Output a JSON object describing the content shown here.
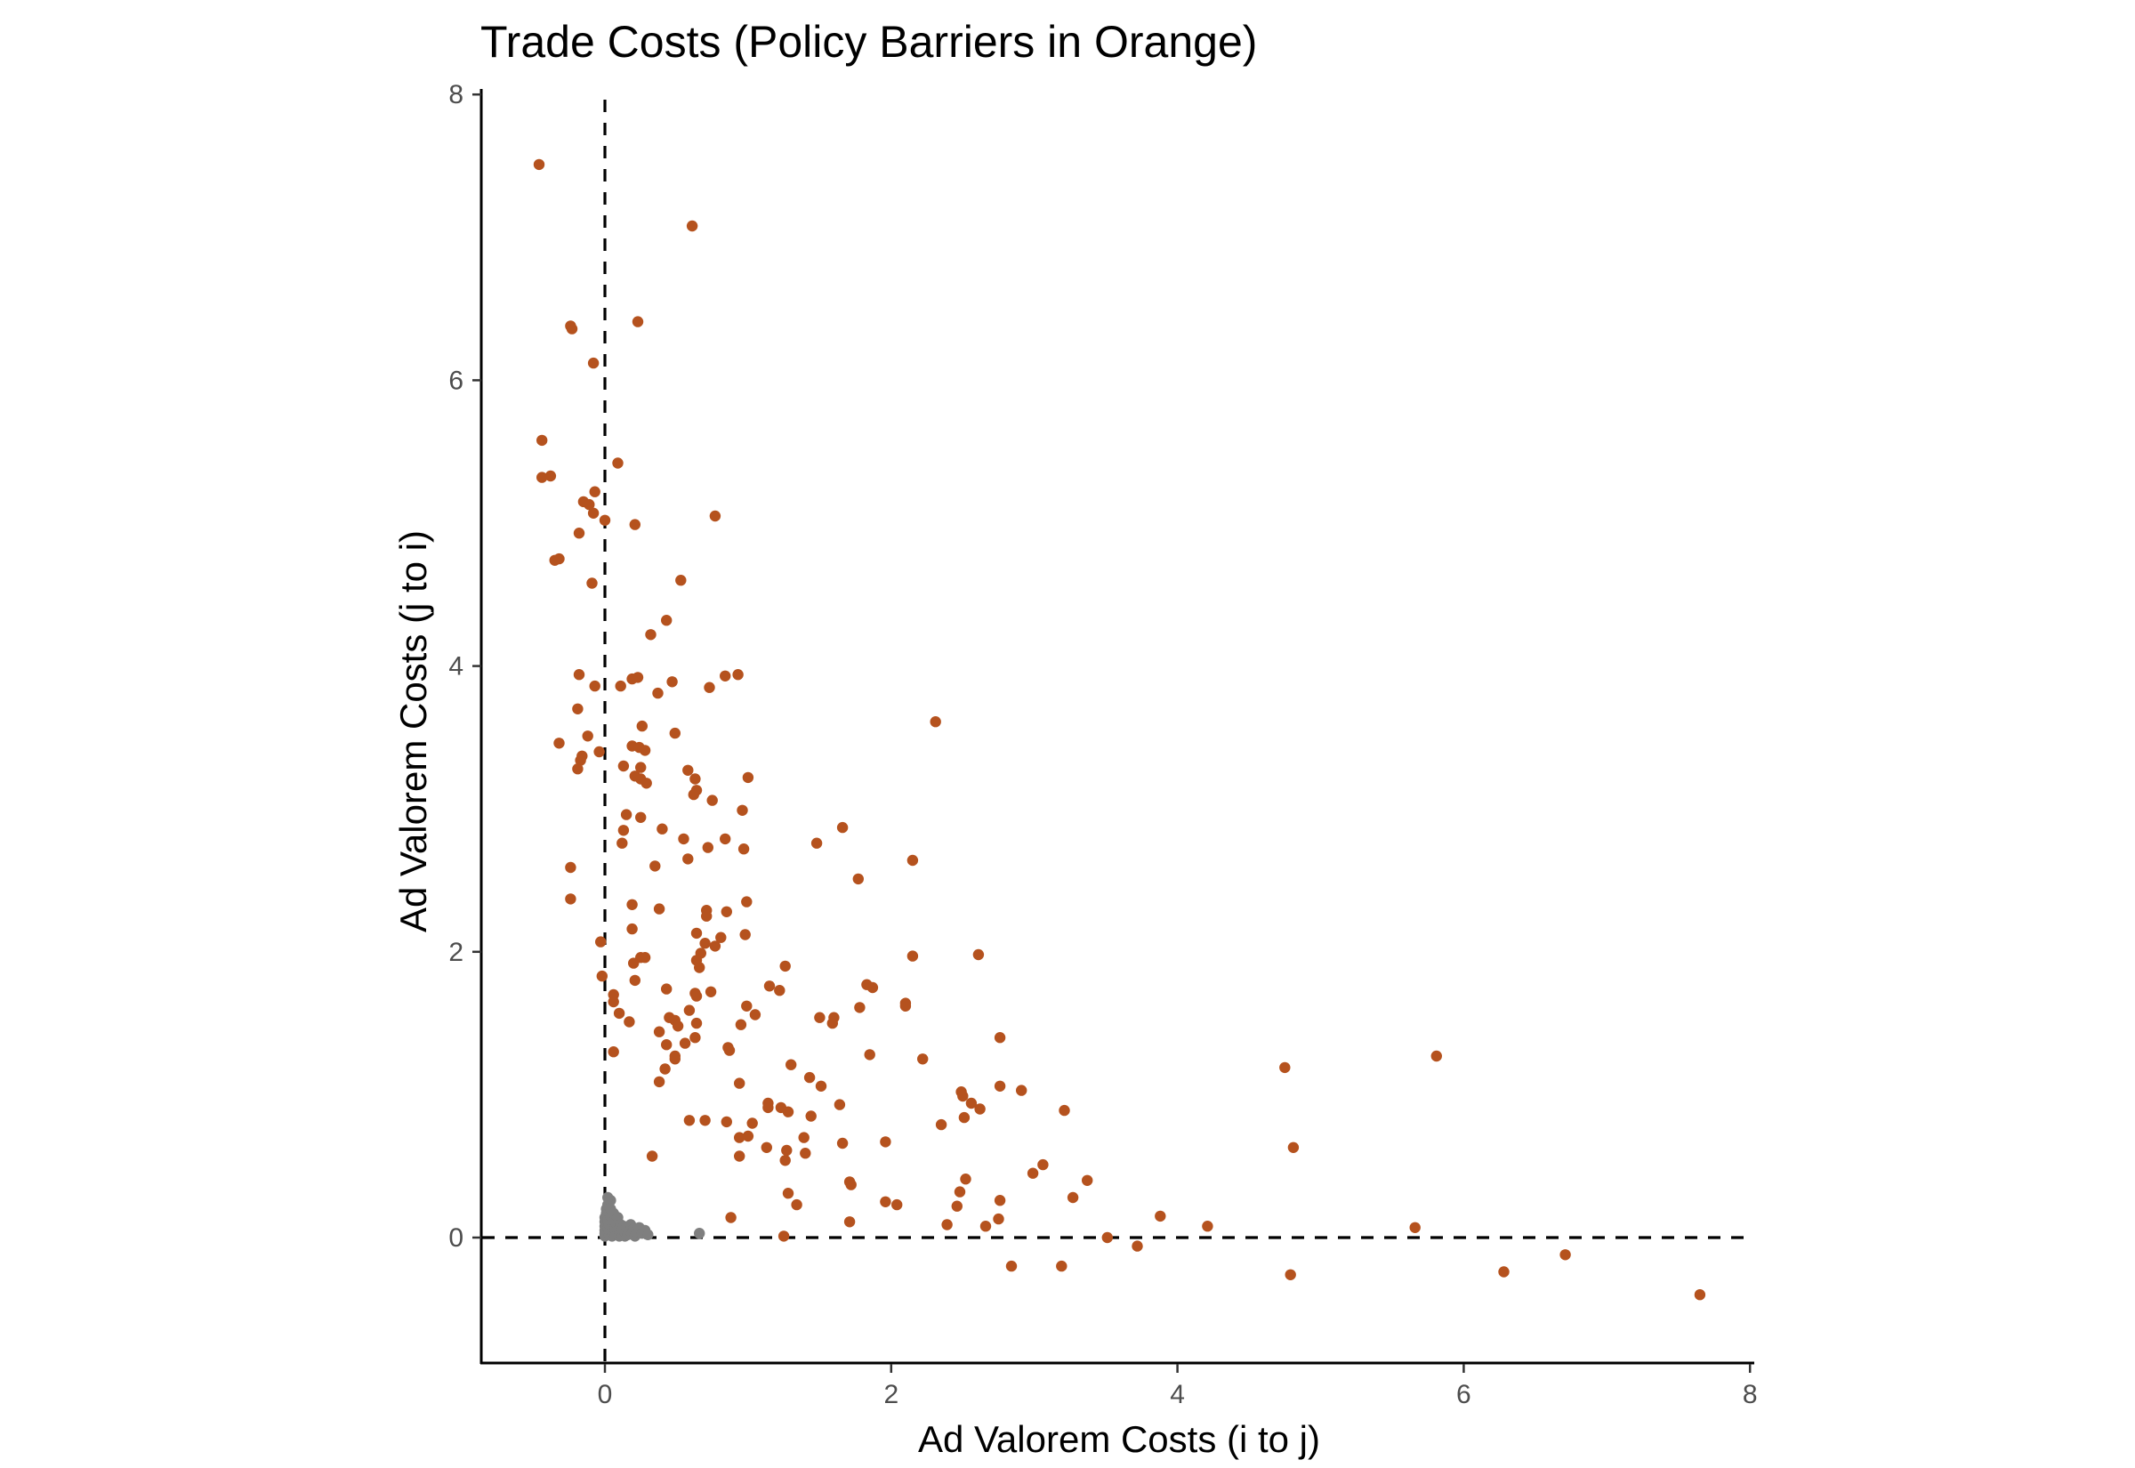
{
  "chart_data": {
    "type": "scatter",
    "title": "Trade Costs (Policy Barriers in Orange)",
    "xlabel": "Ad Valorem Costs (i to j)",
    "ylabel": "Ad Valorem Costs (j to i)",
    "xlim": [
      -0.87,
      8.05
    ],
    "ylim": [
      -0.87,
      8.05
    ],
    "x_ticks": [
      0,
      2,
      4,
      6,
      8
    ],
    "y_ticks": [
      0,
      2,
      4,
      6,
      8
    ],
    "grid": false,
    "legend": "none",
    "reference_lines": [
      {
        "axis": "x",
        "value": 0,
        "style": "dashed"
      },
      {
        "axis": "y",
        "value": 0,
        "style": "dashed"
      }
    ],
    "series": [
      {
        "color": "#B5521E",
        "points": [
          [
            -0.46,
            7.51
          ],
          [
            0.61,
            7.08
          ],
          [
            -0.24,
            6.38
          ],
          [
            -0.23,
            6.36
          ],
          [
            0.23,
            6.41
          ],
          [
            -0.08,
            6.12
          ],
          [
            -0.44,
            5.58
          ],
          [
            -0.44,
            5.32
          ],
          [
            -0.38,
            5.33
          ],
          [
            0.09,
            5.42
          ],
          [
            -0.07,
            5.22
          ],
          [
            -0.15,
            5.15
          ],
          [
            -0.11,
            5.13
          ],
          [
            -0.08,
            5.07
          ],
          [
            0.21,
            4.99
          ],
          [
            0.0,
            5.02
          ],
          [
            0.77,
            5.05
          ],
          [
            -0.18,
            4.93
          ],
          [
            -0.35,
            4.74
          ],
          [
            -0.32,
            4.75
          ],
          [
            -0.09,
            4.58
          ],
          [
            0.53,
            4.6
          ],
          [
            0.43,
            4.32
          ],
          [
            0.32,
            4.22
          ],
          [
            -0.18,
            3.94
          ],
          [
            -0.07,
            3.86
          ],
          [
            0.19,
            3.91
          ],
          [
            0.23,
            3.92
          ],
          [
            0.47,
            3.89
          ],
          [
            0.73,
            3.85
          ],
          [
            0.84,
            3.93
          ],
          [
            0.93,
            3.94
          ],
          [
            0.11,
            3.86
          ],
          [
            0.37,
            3.81
          ],
          [
            -0.19,
            3.7
          ],
          [
            2.31,
            3.61
          ],
          [
            0.26,
            3.58
          ],
          [
            0.49,
            3.53
          ],
          [
            -0.32,
            3.46
          ],
          [
            -0.12,
            3.51
          ],
          [
            -0.04,
            3.4
          ],
          [
            0.19,
            3.44
          ],
          [
            0.24,
            3.43
          ],
          [
            0.28,
            3.41
          ],
          [
            -0.16,
            3.37
          ],
          [
            -0.17,
            3.34
          ],
          [
            -0.19,
            3.28
          ],
          [
            0.13,
            3.3
          ],
          [
            0.25,
            3.29
          ],
          [
            0.21,
            3.23
          ],
          [
            0.25,
            3.21
          ],
          [
            0.29,
            3.18
          ],
          [
            0.58,
            3.27
          ],
          [
            0.63,
            3.21
          ],
          [
            1.0,
            3.22
          ],
          [
            0.64,
            3.13
          ],
          [
            0.75,
            3.06
          ],
          [
            0.62,
            3.1
          ],
          [
            0.96,
            2.99
          ],
          [
            0.15,
            2.96
          ],
          [
            0.25,
            2.94
          ],
          [
            1.66,
            2.87
          ],
          [
            0.13,
            2.85
          ],
          [
            0.4,
            2.86
          ],
          [
            0.55,
            2.79
          ],
          [
            0.84,
            2.79
          ],
          [
            0.12,
            2.76
          ],
          [
            0.72,
            2.73
          ],
          [
            0.97,
            2.72
          ],
          [
            1.48,
            2.76
          ],
          [
            0.58,
            2.65
          ],
          [
            2.15,
            2.64
          ],
          [
            0.35,
            2.6
          ],
          [
            -0.24,
            2.59
          ],
          [
            1.77,
            2.51
          ],
          [
            -0.24,
            2.37
          ],
          [
            0.99,
            2.35
          ],
          [
            0.19,
            2.33
          ],
          [
            0.38,
            2.3
          ],
          [
            0.71,
            2.29
          ],
          [
            0.71,
            2.25
          ],
          [
            0.85,
            2.28
          ],
          [
            0.19,
            2.16
          ],
          [
            0.64,
            2.13
          ],
          [
            0.98,
            2.12
          ],
          [
            0.81,
            2.1
          ],
          [
            0.7,
            2.06
          ],
          [
            0.77,
            2.04
          ],
          [
            -0.03,
            2.07
          ],
          [
            0.25,
            1.96
          ],
          [
            0.28,
            1.96
          ],
          [
            0.2,
            1.92
          ],
          [
            0.67,
            1.99
          ],
          [
            0.64,
            1.94
          ],
          [
            2.15,
            1.97
          ],
          [
            2.61,
            1.98
          ],
          [
            0.66,
            1.89
          ],
          [
            1.26,
            1.9
          ],
          [
            -0.02,
            1.83
          ],
          [
            0.21,
            1.8
          ],
          [
            1.83,
            1.77
          ],
          [
            1.87,
            1.75
          ],
          [
            1.15,
            1.76
          ],
          [
            1.22,
            1.73
          ],
          [
            0.43,
            1.74
          ],
          [
            0.74,
            1.72
          ],
          [
            0.63,
            1.71
          ],
          [
            0.06,
            1.7
          ],
          [
            0.64,
            1.69
          ],
          [
            0.06,
            1.65
          ],
          [
            0.99,
            1.62
          ],
          [
            2.1,
            1.64
          ],
          [
            2.1,
            1.62
          ],
          [
            1.78,
            1.61
          ],
          [
            0.1,
            1.57
          ],
          [
            0.45,
            1.54
          ],
          [
            0.59,
            1.59
          ],
          [
            1.05,
            1.56
          ],
          [
            1.5,
            1.54
          ],
          [
            1.6,
            1.54
          ],
          [
            0.17,
            1.51
          ],
          [
            0.49,
            1.52
          ],
          [
            0.95,
            1.49
          ],
          [
            0.51,
            1.48
          ],
          [
            0.64,
            1.5
          ],
          [
            1.59,
            1.5
          ],
          [
            0.38,
            1.44
          ],
          [
            2.76,
            1.4
          ],
          [
            0.63,
            1.4
          ],
          [
            0.56,
            1.36
          ],
          [
            0.43,
            1.35
          ],
          [
            0.86,
            1.33
          ],
          [
            0.87,
            1.31
          ],
          [
            0.06,
            1.3
          ],
          [
            0.49,
            1.27
          ],
          [
            0.49,
            1.25
          ],
          [
            1.85,
            1.28
          ],
          [
            2.22,
            1.25
          ],
          [
            5.81,
            1.27
          ],
          [
            1.3,
            1.21
          ],
          [
            0.42,
            1.18
          ],
          [
            0.38,
            1.09
          ],
          [
            0.94,
            1.08
          ],
          [
            1.43,
            1.12
          ],
          [
            1.51,
            1.06
          ],
          [
            2.76,
            1.06
          ],
          [
            2.91,
            1.03
          ],
          [
            2.49,
            1.02
          ],
          [
            2.5,
            0.99
          ],
          [
            4.75,
            1.19
          ],
          [
            1.14,
            0.94
          ],
          [
            1.64,
            0.93
          ],
          [
            2.56,
            0.94
          ],
          [
            1.14,
            0.91
          ],
          [
            1.23,
            0.91
          ],
          [
            1.28,
            0.88
          ],
          [
            1.44,
            0.85
          ],
          [
            2.62,
            0.9
          ],
          [
            3.21,
            0.89
          ],
          [
            0.59,
            0.82
          ],
          [
            0.7,
            0.82
          ],
          [
            0.85,
            0.81
          ],
          [
            1.03,
            0.8
          ],
          [
            2.35,
            0.79
          ],
          [
            2.51,
            0.84
          ],
          [
            4.81,
            0.63
          ],
          [
            1.0,
            0.71
          ],
          [
            0.94,
            0.7
          ],
          [
            1.39,
            0.7
          ],
          [
            1.66,
            0.66
          ],
          [
            1.96,
            0.67
          ],
          [
            1.13,
            0.63
          ],
          [
            1.27,
            0.61
          ],
          [
            1.4,
            0.59
          ],
          [
            0.94,
            0.57
          ],
          [
            0.33,
            0.57
          ],
          [
            1.26,
            0.54
          ],
          [
            3.06,
            0.51
          ],
          [
            2.99,
            0.45
          ],
          [
            3.37,
            0.4
          ],
          [
            2.52,
            0.41
          ],
          [
            1.71,
            0.39
          ],
          [
            1.72,
            0.37
          ],
          [
            2.48,
            0.32
          ],
          [
            1.28,
            0.31
          ],
          [
            3.27,
            0.28
          ],
          [
            1.96,
            0.25
          ],
          [
            2.04,
            0.23
          ],
          [
            2.76,
            0.26
          ],
          [
            1.34,
            0.23
          ],
          [
            2.46,
            0.22
          ],
          [
            3.88,
            0.15
          ],
          [
            0.88,
            0.14
          ],
          [
            2.75,
            0.13
          ],
          [
            1.71,
            0.11
          ],
          [
            2.39,
            0.09
          ],
          [
            2.66,
            0.08
          ],
          [
            4.21,
            0.08
          ],
          [
            5.66,
            0.07
          ],
          [
            1.25,
            0.01
          ],
          [
            3.51,
            0.0
          ],
          [
            3.72,
            -0.06
          ],
          [
            6.71,
            -0.12
          ],
          [
            2.84,
            -0.2
          ],
          [
            3.19,
            -0.2
          ],
          [
            4.79,
            -0.26
          ],
          [
            6.28,
            -0.24
          ],
          [
            7.65,
            -0.4
          ]
        ]
      },
      {
        "color": "#7F7F7F",
        "points": [
          [
            0.0,
            0.01
          ],
          [
            0.0,
            0.03
          ],
          [
            0.0,
            0.05
          ],
          [
            0.0,
            0.08
          ],
          [
            0.0,
            0.11
          ],
          [
            0.0,
            0.14
          ],
          [
            0.01,
            0.17
          ],
          [
            0.01,
            0.2
          ],
          [
            0.02,
            0.23
          ],
          [
            0.01,
            0.02
          ],
          [
            0.02,
            0.06
          ],
          [
            0.02,
            0.12
          ],
          [
            0.03,
            0.02
          ],
          [
            0.03,
            0.05
          ],
          [
            0.03,
            0.09
          ],
          [
            0.04,
            0.15
          ],
          [
            0.04,
            0.2
          ],
          [
            0.05,
            0.01
          ],
          [
            0.05,
            0.04
          ],
          [
            0.05,
            0.08
          ],
          [
            0.06,
            0.12
          ],
          [
            0.06,
            0.17
          ],
          [
            0.07,
            0.02
          ],
          [
            0.07,
            0.06
          ],
          [
            0.08,
            0.1
          ],
          [
            0.09,
            0.03
          ],
          [
            0.09,
            0.14
          ],
          [
            0.1,
            0.01
          ],
          [
            0.1,
            0.06
          ],
          [
            0.11,
            0.09
          ],
          [
            0.12,
            0.02
          ],
          [
            0.12,
            0.05
          ],
          [
            0.13,
            0.08
          ],
          [
            0.14,
            0.01
          ],
          [
            0.14,
            0.04
          ],
          [
            0.15,
            0.07
          ],
          [
            0.16,
            0.02
          ],
          [
            0.17,
            0.05
          ],
          [
            0.18,
            0.09
          ],
          [
            0.19,
            0.03
          ],
          [
            0.2,
            0.06
          ],
          [
            0.21,
            0.01
          ],
          [
            0.22,
            0.04
          ],
          [
            0.24,
            0.07
          ],
          [
            0.26,
            0.03
          ],
          [
            0.28,
            0.05
          ],
          [
            0.3,
            0.02
          ],
          [
            0.04,
            0.26
          ],
          [
            0.02,
            0.28
          ],
          [
            0.66,
            0.03
          ]
        ]
      }
    ]
  }
}
